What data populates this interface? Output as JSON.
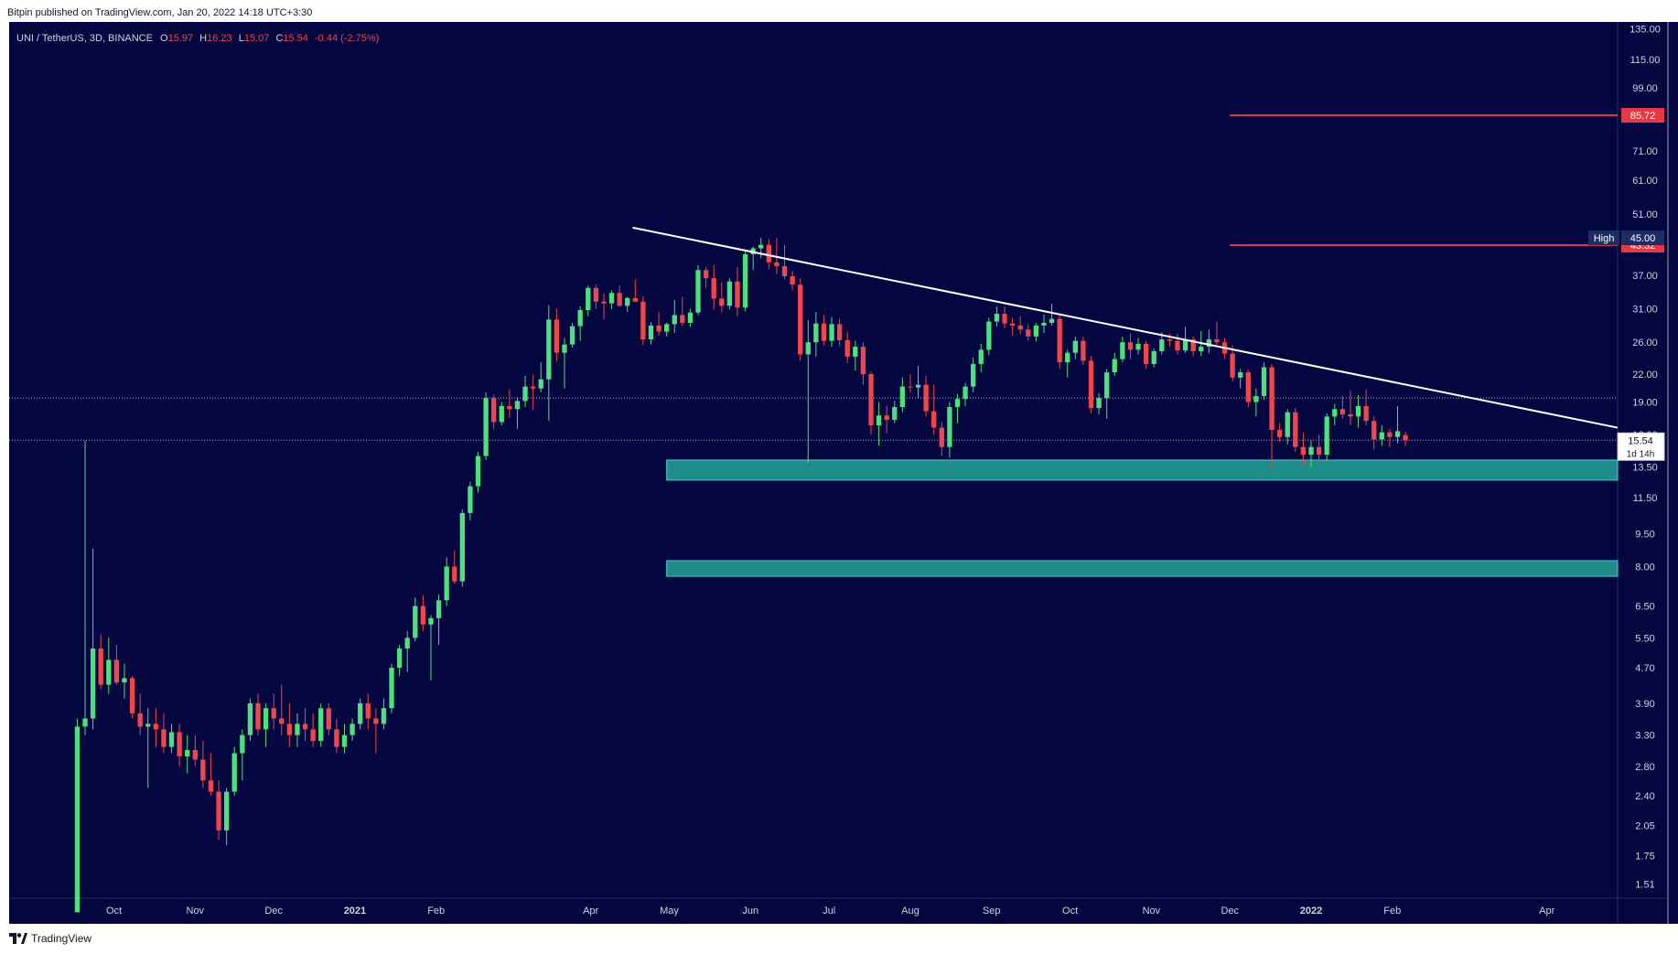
{
  "header": {
    "published": "Bitpin published on TradingView.com, Jan 20, 2022 14:18 UTC+3:30"
  },
  "footer": {
    "brand": "TradingView"
  },
  "colors": {
    "background": "#03063f",
    "up": "#4ee07c",
    "down": "#f0464b",
    "zone": "#1f8b8b",
    "zone_border": "#4fd0d0",
    "target_line": "#d33a47",
    "trendline": "#ffffff"
  },
  "chart_data": {
    "type": "candlestick",
    "title": "UNI / TetherUS, 3D, BINANCE",
    "ohlc_legend": {
      "o_label": "O",
      "o_value": "15.97",
      "h_label": "H",
      "h_value": "16.23",
      "l_label": "L",
      "l_value": "15.07",
      "c_label": "C",
      "c_value": "15.54",
      "change": "-0.44 (-2.75%)"
    },
    "y_scale": "log",
    "ylim": [
      1.4,
      140
    ],
    "y_ticks": [
      "135.00",
      "115.00",
      "99.00",
      "85.00",
      "71.00",
      "61.00",
      "51.00",
      "37.00",
      "31.00",
      "26.00",
      "22.00",
      "19.00",
      "16.00",
      "13.50",
      "11.50",
      "9.50",
      "8.00",
      "6.50",
      "5.50",
      "4.70",
      "3.90",
      "3.30",
      "2.80",
      "2.40",
      "2.05",
      "1.75",
      "1.51"
    ],
    "x_ticks": [
      {
        "label": "Oct",
        "date": "2020-10-01"
      },
      {
        "label": "Nov",
        "date": "2020-11-01"
      },
      {
        "label": "Dec",
        "date": "2020-12-01"
      },
      {
        "label": "2021",
        "date": "2021-01-01"
      },
      {
        "label": "Feb",
        "date": "2021-02-01"
      },
      {
        "label": "Apr",
        "date": "2021-04-01"
      },
      {
        "label": "May",
        "date": "2021-05-01"
      },
      {
        "label": "Jun",
        "date": "2021-06-01"
      },
      {
        "label": "Jul",
        "date": "2021-07-01"
      },
      {
        "label": "Aug",
        "date": "2021-08-01"
      },
      {
        "label": "Sep",
        "date": "2021-09-01"
      },
      {
        "label": "Oct",
        "date": "2021-10-01"
      },
      {
        "label": "Nov",
        "date": "2021-11-01"
      },
      {
        "label": "Dec",
        "date": "2021-12-01"
      },
      {
        "label": "2022",
        "date": "2022-01-01"
      },
      {
        "label": "Feb",
        "date": "2022-02-01"
      },
      {
        "label": "Apr",
        "date": "2022-04-01"
      }
    ],
    "xlim": [
      "2020-08-22",
      "2022-04-28"
    ],
    "price_labels": [
      {
        "text": "85.72",
        "value": 85.72,
        "kind": "target"
      },
      {
        "text": "43.32",
        "value": 43.32,
        "kind": "target"
      },
      {
        "text": "45.00",
        "value": 45.0,
        "kind": "high",
        "tag": "High"
      },
      {
        "text": "15.54",
        "value": 15.54,
        "kind": "last",
        "sub": "1d 14h"
      }
    ],
    "target_lines": [
      {
        "value": 85.72,
        "from": "2021-12-01"
      },
      {
        "value": 43.32,
        "from": "2021-12-01"
      }
    ],
    "zones": [
      {
        "low": 12.6,
        "high": 14.0,
        "from": "2021-04-30"
      },
      {
        "low": 7.6,
        "high": 8.25,
        "from": "2021-04-30"
      }
    ],
    "trendline": {
      "from": [
        "2021-04-17",
        47.5
      ],
      "to": [
        "2022-04-28",
        16.6
      ]
    },
    "dotted_levels": [
      19.4,
      15.54
    ],
    "candles_start": "2020-09-17",
    "candle_days": 3,
    "candles": [
      [
        1.3,
        3.6,
        1.3,
        3.45
      ],
      [
        3.45,
        15.5,
        3.3,
        3.6
      ],
      [
        3.6,
        8.8,
        3.4,
        5.2
      ],
      [
        5.2,
        5.6,
        4.2,
        4.3
      ],
      [
        4.3,
        5.5,
        4.1,
        4.9
      ],
      [
        4.9,
        5.3,
        4.3,
        4.35
      ],
      [
        4.35,
        4.8,
        4.0,
        4.45
      ],
      [
        4.45,
        4.5,
        3.6,
        3.7
      ],
      [
        3.7,
        4.1,
        3.3,
        3.45
      ],
      [
        3.45,
        3.8,
        2.5,
        3.5
      ],
      [
        3.5,
        3.8,
        3.1,
        3.4
      ],
      [
        3.4,
        3.7,
        3.0,
        3.1
      ],
      [
        3.1,
        3.5,
        3.0,
        3.35
      ],
      [
        3.35,
        3.5,
        2.8,
        2.95
      ],
      [
        2.95,
        3.3,
        2.7,
        3.05
      ],
      [
        3.05,
        3.3,
        2.8,
        2.9
      ],
      [
        2.9,
        3.2,
        2.5,
        2.6
      ],
      [
        2.6,
        3.0,
        2.4,
        2.45
      ],
      [
        2.45,
        2.6,
        1.9,
        2.0
      ],
      [
        2.0,
        2.5,
        1.85,
        2.45
      ],
      [
        2.45,
        3.1,
        2.4,
        3.0
      ],
      [
        3.0,
        3.4,
        2.6,
        3.3
      ],
      [
        3.3,
        4.0,
        3.2,
        3.9
      ],
      [
        3.9,
        4.1,
        3.3,
        3.4
      ],
      [
        3.4,
        3.9,
        3.1,
        3.8
      ],
      [
        3.8,
        4.1,
        3.4,
        3.6
      ],
      [
        3.6,
        4.3,
        3.3,
        3.5
      ],
      [
        3.5,
        3.9,
        3.1,
        3.3
      ],
      [
        3.3,
        3.7,
        3.1,
        3.5
      ],
      [
        3.5,
        3.8,
        3.2,
        3.4
      ],
      [
        3.4,
        3.7,
        3.1,
        3.2
      ],
      [
        3.2,
        3.9,
        3.1,
        3.8
      ],
      [
        3.8,
        3.9,
        3.3,
        3.4
      ],
      [
        3.4,
        3.6,
        3.0,
        3.1
      ],
      [
        3.1,
        3.5,
        3.0,
        3.3
      ],
      [
        3.3,
        3.6,
        3.2,
        3.5
      ],
      [
        3.5,
        4.0,
        3.4,
        3.9
      ],
      [
        3.9,
        4.1,
        3.4,
        3.6
      ],
      [
        3.6,
        3.8,
        3.0,
        3.5
      ],
      [
        3.5,
        4.0,
        3.4,
        3.8
      ],
      [
        3.8,
        4.8,
        3.7,
        4.7
      ],
      [
        4.7,
        5.3,
        4.5,
        5.2
      ],
      [
        5.2,
        5.7,
        4.6,
        5.5
      ],
      [
        5.5,
        6.8,
        5.4,
        6.5
      ],
      [
        6.5,
        6.9,
        5.7,
        5.9
      ],
      [
        5.9,
        6.2,
        4.4,
        6.1
      ],
      [
        6.1,
        6.9,
        5.3,
        6.7
      ],
      [
        6.7,
        8.4,
        6.5,
        8.0
      ],
      [
        8.0,
        8.7,
        7.3,
        7.4
      ],
      [
        7.4,
        10.8,
        7.2,
        10.6
      ],
      [
        10.6,
        12.5,
        10.2,
        12.2
      ],
      [
        12.2,
        14.6,
        11.8,
        14.3
      ],
      [
        14.3,
        20.0,
        14.0,
        19.4
      ],
      [
        19.4,
        19.8,
        16.5,
        17.1
      ],
      [
        17.1,
        19.0,
        16.8,
        18.6
      ],
      [
        18.6,
        20.3,
        17.5,
        18.3
      ],
      [
        18.3,
        19.5,
        16.5,
        19.1
      ],
      [
        19.1,
        21.8,
        18.5,
        20.6
      ],
      [
        20.6,
        21.9,
        18.2,
        20.4
      ],
      [
        20.4,
        23.4,
        20.0,
        21.4
      ],
      [
        21.4,
        31.6,
        17.2,
        29.3
      ],
      [
        29.3,
        31.0,
        23.5,
        24.6
      ],
      [
        24.6,
        26.6,
        20.4,
        25.7
      ],
      [
        25.7,
        28.8,
        25.3,
        28.3
      ],
      [
        28.3,
        31.4,
        26.2,
        30.8
      ],
      [
        30.8,
        35.0,
        29.8,
        34.6
      ],
      [
        34.6,
        35.2,
        31.0,
        32.2
      ],
      [
        32.2,
        33.6,
        29.3,
        31.9
      ],
      [
        31.9,
        34.2,
        31.0,
        33.7
      ],
      [
        33.7,
        35.0,
        31.3,
        31.5
      ],
      [
        31.5,
        33.0,
        30.5,
        32.8
      ],
      [
        32.8,
        36.2,
        32.1,
        32.2
      ],
      [
        32.2,
        33.1,
        25.6,
        26.4
      ],
      [
        26.4,
        28.9,
        25.7,
        28.4
      ],
      [
        28.4,
        30.5,
        26.9,
        27.5
      ],
      [
        27.5,
        28.8,
        26.8,
        28.6
      ],
      [
        28.6,
        32.5,
        27.3,
        30.0
      ],
      [
        30.0,
        33.0,
        28.4,
        28.8
      ],
      [
        28.8,
        31.0,
        28.2,
        30.4
      ],
      [
        30.4,
        39.0,
        30.0,
        38.0
      ],
      [
        38.0,
        38.6,
        34.6,
        36.4
      ],
      [
        36.4,
        39.0,
        30.9,
        32.7
      ],
      [
        32.7,
        35.6,
        30.4,
        31.5
      ],
      [
        31.5,
        36.4,
        30.9,
        35.8
      ],
      [
        35.8,
        38.6,
        29.8,
        31.2
      ],
      [
        31.2,
        42.0,
        30.6,
        41.3
      ],
      [
        41.3,
        43.0,
        38.0,
        42.6
      ],
      [
        42.6,
        45.0,
        40.4,
        43.4
      ],
      [
        43.4,
        44.8,
        38.2,
        39.6
      ],
      [
        39.6,
        45.0,
        37.2,
        38.8
      ],
      [
        38.8,
        43.4,
        36.2,
        36.8
      ],
      [
        36.8,
        37.8,
        34.2,
        35.2
      ],
      [
        35.2,
        36.4,
        23.6,
        24.4
      ],
      [
        24.4,
        29.2,
        13.8,
        26.0
      ],
      [
        26.0,
        30.5,
        24.1,
        28.7
      ],
      [
        28.7,
        30.0,
        25.6,
        26.2
      ],
      [
        26.2,
        29.7,
        25.4,
        28.6
      ],
      [
        28.6,
        29.4,
        25.5,
        26.3
      ],
      [
        26.3,
        27.5,
        23.3,
        24.1
      ],
      [
        24.1,
        26.2,
        22.4,
        25.4
      ],
      [
        25.4,
        26.0,
        20.8,
        22.0
      ],
      [
        22.0,
        22.3,
        16.0,
        16.8
      ],
      [
        16.8,
        19.0,
        15.1,
        17.7
      ],
      [
        17.7,
        18.6,
        16.1,
        17.3
      ],
      [
        17.3,
        19.1,
        17.0,
        18.5
      ],
      [
        18.5,
        21.6,
        18.0,
        20.6
      ],
      [
        20.6,
        22.0,
        20.0,
        20.5
      ],
      [
        20.5,
        23.0,
        19.4,
        20.8
      ],
      [
        20.8,
        21.8,
        17.6,
        18.1
      ],
      [
        18.1,
        20.8,
        16.0,
        16.6
      ],
      [
        16.6,
        17.1,
        14.3,
        15.0
      ],
      [
        15.0,
        19.0,
        14.2,
        18.5
      ],
      [
        18.5,
        19.8,
        17.0,
        19.3
      ],
      [
        19.3,
        21.0,
        18.6,
        20.6
      ],
      [
        20.6,
        24.0,
        20.0,
        23.2
      ],
      [
        23.2,
        25.8,
        22.2,
        25.0
      ],
      [
        25.0,
        29.6,
        24.3,
        29.0
      ],
      [
        29.0,
        31.4,
        28.2,
        30.2
      ],
      [
        30.2,
        31.4,
        28.0,
        28.7
      ],
      [
        28.7,
        29.6,
        27.0,
        28.4
      ],
      [
        28.4,
        29.8,
        27.1,
        27.8
      ],
      [
        27.8,
        28.6,
        26.2,
        26.8
      ],
      [
        26.8,
        28.8,
        26.1,
        28.4
      ],
      [
        28.4,
        30.1,
        27.3,
        28.8
      ],
      [
        28.8,
        31.8,
        28.4,
        29.4
      ],
      [
        29.4,
        30.2,
        22.6,
        23.4
      ],
      [
        23.4,
        25.0,
        21.6,
        24.6
      ],
      [
        24.6,
        26.8,
        23.8,
        26.2
      ],
      [
        26.2,
        26.8,
        23.1,
        23.6
      ],
      [
        23.6,
        24.2,
        17.9,
        18.4
      ],
      [
        18.4,
        19.9,
        17.8,
        19.4
      ],
      [
        19.4,
        22.6,
        17.4,
        22.2
      ],
      [
        22.2,
        24.6,
        21.8,
        23.8
      ],
      [
        23.8,
        26.8,
        23.4,
        26.0
      ],
      [
        26.0,
        27.2,
        23.8,
        25.0
      ],
      [
        25.0,
        26.6,
        24.4,
        25.8
      ],
      [
        25.8,
        26.2,
        22.6,
        23.2
      ],
      [
        23.2,
        25.2,
        22.8,
        24.8
      ],
      [
        24.8,
        27.4,
        24.4,
        26.4
      ],
      [
        26.4,
        27.2,
        25.4,
        26.2
      ],
      [
        26.2,
        27.2,
        24.4,
        24.9
      ],
      [
        24.9,
        28.2,
        24.6,
        26.4
      ],
      [
        26.4,
        26.8,
        24.2,
        24.8
      ],
      [
        24.8,
        27.6,
        24.2,
        25.4
      ],
      [
        25.4,
        27.8,
        24.6,
        26.4
      ],
      [
        26.4,
        29.0,
        25.4,
        26.0
      ],
      [
        26.0,
        26.6,
        23.8,
        24.5
      ],
      [
        24.5,
        25.6,
        21.2,
        21.6
      ],
      [
        21.6,
        22.6,
        20.4,
        22.2
      ],
      [
        22.2,
        22.5,
        18.5,
        19.0
      ],
      [
        19.0,
        20.4,
        17.6,
        19.6
      ],
      [
        19.6,
        23.4,
        19.2,
        22.8
      ],
      [
        22.8,
        23.2,
        13.4,
        16.4
      ],
      [
        16.4,
        17.0,
        15.4,
        15.8
      ],
      [
        15.8,
        18.3,
        15.2,
        18.0
      ],
      [
        18.0,
        18.4,
        14.6,
        15.0
      ],
      [
        15.0,
        16.2,
        13.6,
        14.4
      ],
      [
        14.4,
        15.5,
        13.5,
        15.0
      ],
      [
        15.0,
        16.0,
        13.8,
        14.4
      ],
      [
        14.4,
        17.9,
        14.0,
        17.6
      ],
      [
        17.6,
        18.8,
        16.8,
        18.3
      ],
      [
        18.3,
        19.6,
        17.4,
        17.8
      ],
      [
        17.8,
        20.2,
        16.8,
        17.6
      ],
      [
        17.6,
        19.7,
        16.6,
        18.6
      ],
      [
        18.6,
        20.3,
        16.8,
        17.2
      ],
      [
        17.2,
        17.6,
        14.8,
        15.6
      ],
      [
        15.6,
        16.8,
        15.1,
        16.2
      ],
      [
        16.2,
        16.5,
        15.0,
        15.8
      ],
      [
        15.8,
        18.6,
        15.3,
        16.3
      ],
      [
        15.97,
        16.23,
        15.07,
        15.54
      ]
    ]
  }
}
